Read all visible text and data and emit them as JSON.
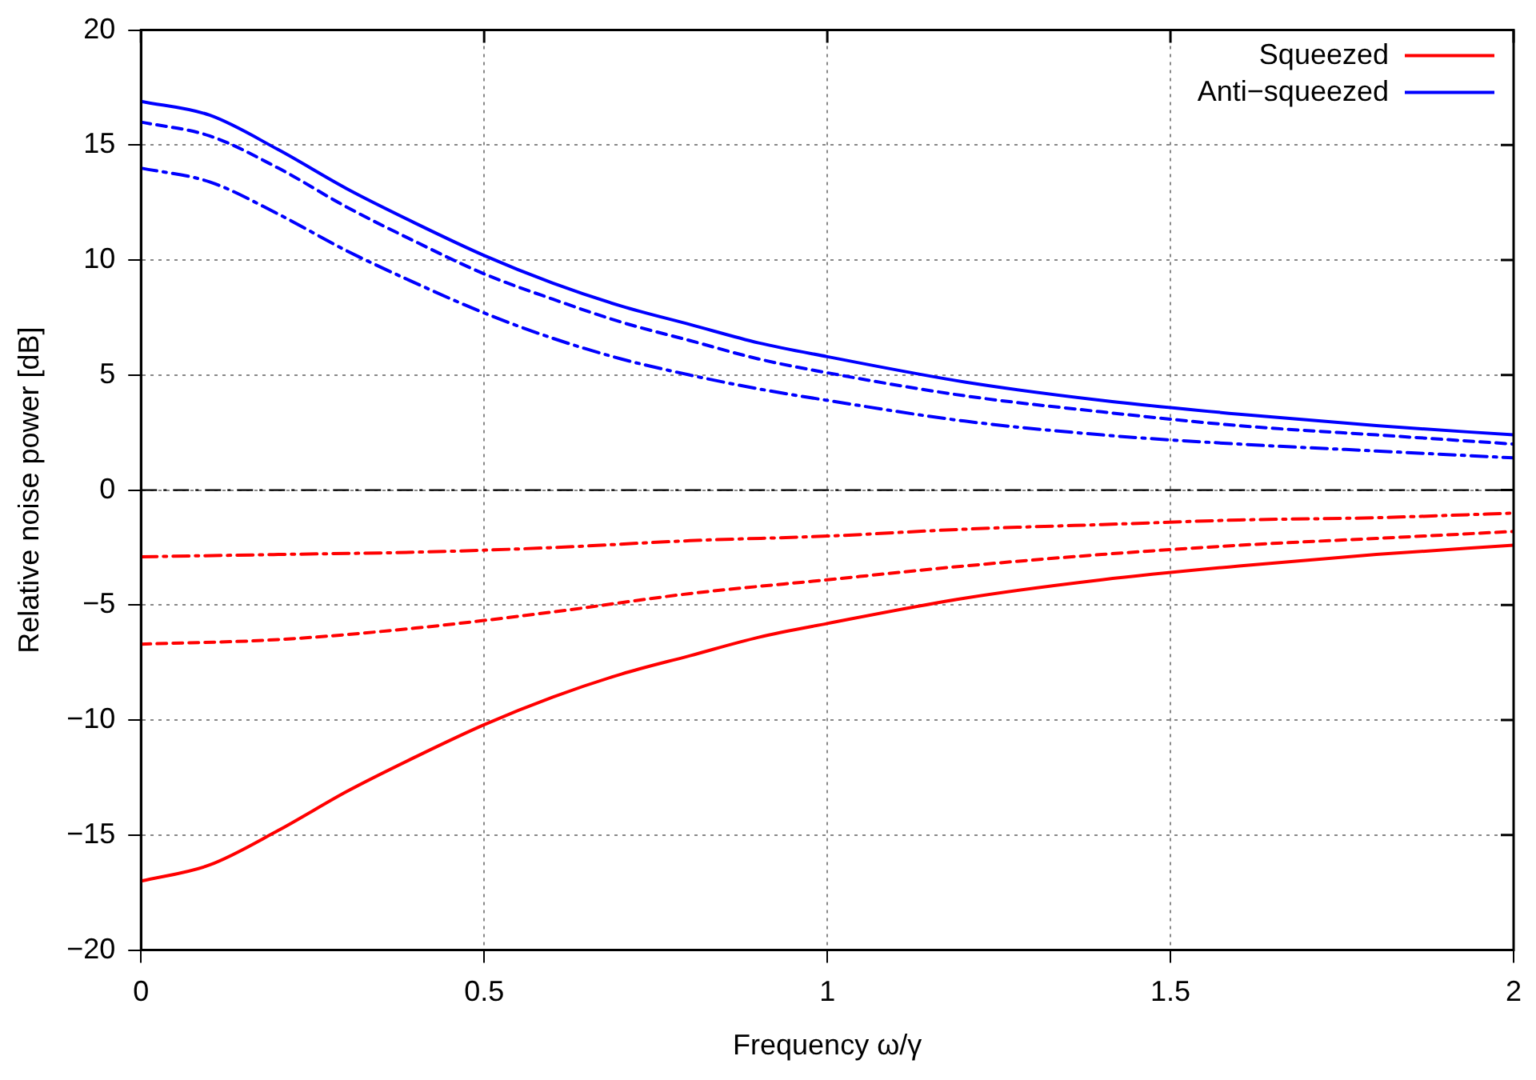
{
  "chart_data": {
    "type": "line",
    "xlabel": "Frequency ω/γ",
    "ylabel": "Relative noise power [dB]",
    "xlim": [
      0,
      2
    ],
    "xticks": [
      0,
      0.5,
      1,
      1.5,
      2
    ],
    "ylim": [
      -20,
      20
    ],
    "yticks": [
      {
        "value": -20,
        "label": "−20"
      },
      {
        "value": -15,
        "label": "−15"
      },
      {
        "value": -10,
        "label": "−10"
      },
      {
        "value": -5,
        "label": "−5"
      },
      0,
      5,
      10,
      15,
      20
    ],
    "grid": true,
    "legend": "top right",
    "marker": "none",
    "ref_lines": [
      {
        "axis": "y",
        "value": 0,
        "color": "#000000",
        "line_style": "dashdot"
      }
    ],
    "series": [
      {
        "name": "Squeezed",
        "color": "#ff0000",
        "line_style": "solid",
        "x": [
          0,
          0.1,
          0.2,
          0.3,
          0.4,
          0.5,
          0.6,
          0.7,
          0.8,
          0.9,
          1,
          1.2,
          1.4,
          1.6,
          1.8,
          2
        ],
        "values": [
          -17.0,
          -16.3,
          -14.8,
          -13.1,
          -11.6,
          -10.2,
          -9.0,
          -8.0,
          -7.2,
          -6.4,
          -5.8,
          -4.7,
          -3.9,
          -3.3,
          -2.8,
          -2.4
        ]
      },
      {
        "name": "Anti−squeezed",
        "color": "#0000ff",
        "line_style": "solid",
        "x": [
          0,
          0.1,
          0.2,
          0.3,
          0.4,
          0.5,
          0.6,
          0.7,
          0.8,
          0.9,
          1,
          1.2,
          1.4,
          1.6,
          1.8,
          2
        ],
        "values": [
          16.9,
          16.3,
          14.8,
          13.1,
          11.6,
          10.2,
          9.0,
          8.0,
          7.2,
          6.4,
          5.8,
          4.7,
          3.9,
          3.3,
          2.8,
          2.4
        ]
      },
      {
        "color": "#ff0000",
        "line_style": "dashed",
        "x": [
          0,
          0.2,
          0.4,
          0.6,
          0.8,
          1,
          1.2,
          1.4,
          1.6,
          1.8,
          2
        ],
        "values": [
          -6.7,
          -6.5,
          -6.0,
          -5.3,
          -4.5,
          -3.9,
          -3.3,
          -2.8,
          -2.4,
          -2.1,
          -1.8
        ]
      },
      {
        "color": "#0000ff",
        "line_style": "dashed",
        "x": [
          0,
          0.1,
          0.2,
          0.3,
          0.4,
          0.5,
          0.6,
          0.7,
          0.8,
          0.9,
          1,
          1.2,
          1.4,
          1.6,
          1.8,
          2
        ],
        "values": [
          16.0,
          15.4,
          14.0,
          12.3,
          10.8,
          9.4,
          8.3,
          7.3,
          6.5,
          5.7,
          5.1,
          4.1,
          3.4,
          2.8,
          2.4,
          2.0
        ]
      },
      {
        "color": "#ff0000",
        "line_style": "dashdot",
        "x": [
          0,
          0.2,
          0.4,
          0.6,
          0.8,
          1,
          1.2,
          1.4,
          1.6,
          1.8,
          2
        ],
        "values": [
          -2.9,
          -2.8,
          -2.7,
          -2.5,
          -2.2,
          -2.0,
          -1.7,
          -1.5,
          -1.3,
          -1.2,
          -1.0
        ]
      },
      {
        "color": "#0000ff",
        "line_style": "dashdot",
        "x": [
          0,
          0.1,
          0.2,
          0.3,
          0.4,
          0.5,
          0.6,
          0.7,
          0.8,
          0.9,
          1,
          1.2,
          1.4,
          1.6,
          1.8,
          2
        ],
        "values": [
          14.0,
          13.4,
          12.0,
          10.4,
          9.0,
          7.7,
          6.6,
          5.7,
          5.0,
          4.4,
          3.9,
          3.0,
          2.4,
          2.0,
          1.7,
          1.4
        ]
      }
    ]
  }
}
